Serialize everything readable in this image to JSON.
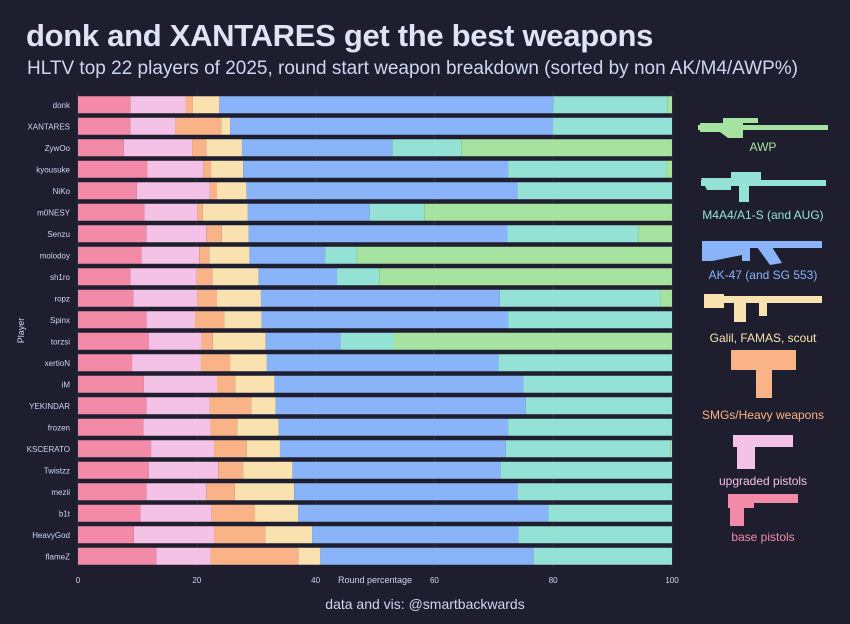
{
  "chart_data": {
    "type": "bar",
    "orientation": "horizontal",
    "stacked": true,
    "title": "donk and XANTARES get the best weapons",
    "subtitle": "HLTV top 22 players of 2025, round start weapon breakdown (sorted by non AK/M4/AWP%)",
    "xlabel": "Round percentage",
    "ylabel": "Player",
    "xlim": [
      0,
      100
    ],
    "xticks": [
      0,
      20,
      40,
      60,
      80,
      100
    ],
    "grid": true,
    "legend_position": "right",
    "categories": [
      "donk",
      "XANTARES",
      "ZywOo",
      "kyousuke",
      "NiKo",
      "m0NESY",
      "Senzu",
      "molodoy",
      "sh1ro",
      "ropz",
      "Spinx",
      "torzsi",
      "xertioN",
      "iM",
      "YEKINDAR",
      "frozen",
      "KSCERATO",
      "Twistzz",
      "mezii",
      "b1t",
      "HeavyGod",
      "flameZ"
    ],
    "series": [
      {
        "name": "base pistols",
        "color": "#f38ba8",
        "values": [
          8.8,
          8.8,
          7.7,
          11.7,
          9.9,
          11.2,
          11.5,
          10.7,
          8.8,
          9.3,
          11.5,
          11.9,
          9.1,
          11.1,
          11.5,
          11.0,
          12.3,
          11.9,
          11.5,
          10.5,
          9.4,
          13.2
        ]
      },
      {
        "name": "upgraded pistols",
        "color": "#f5c2e7",
        "values": [
          9.3,
          7.6,
          11.5,
          9.4,
          12.3,
          8.9,
          10.1,
          9.7,
          11.2,
          10.8,
          8.2,
          8.9,
          11.6,
          12.3,
          10.7,
          11.3,
          10.6,
          11.7,
          10.1,
          12.0,
          13.5,
          9.1
        ]
      },
      {
        "name": "SMGs/Heavy weapons",
        "color": "#fab387",
        "values": [
          1.2,
          7.7,
          2.4,
          1.3,
          1.2,
          0.9,
          2.6,
          1.7,
          2.6,
          3.3,
          4.9,
          1.9,
          4.9,
          3.1,
          7.0,
          4.5,
          5.5,
          4.2,
          4.8,
          7.3,
          8.6,
          14.8
        ]
      },
      {
        "name": "Galil, FAMAS, scout",
        "color": "#f9e2af",
        "values": [
          4.5,
          1.5,
          6.0,
          5.4,
          5.0,
          7.6,
          4.5,
          6.8,
          7.8,
          7.4,
          6.3,
          8.9,
          6.2,
          6.6,
          4.1,
          7.0,
          5.6,
          8.3,
          10.0,
          7.3,
          7.9,
          3.7
        ]
      },
      {
        "name": "AK-47 (and SG 553)",
        "color": "#89b4fa",
        "values": [
          56.2,
          54.3,
          25.3,
          44.6,
          45.6,
          20.5,
          43.6,
          12.7,
          13.2,
          40.2,
          41.5,
          12.6,
          39.0,
          41.9,
          42.1,
          38.6,
          38.0,
          35.0,
          37.6,
          42.1,
          34.7,
          35.9
        ]
      },
      {
        "name": "M4A4/A1-S (and AUG)",
        "color": "#94e2d5",
        "values": [
          19.2,
          20.1,
          11.6,
          26.6,
          26.0,
          9.2,
          22.0,
          5.3,
          7.1,
          27.0,
          27.6,
          9.0,
          29.2,
          25.0,
          24.6,
          27.6,
          27.8,
          28.9,
          26.0,
          20.8,
          25.9,
          23.3
        ]
      },
      {
        "name": "AWP",
        "color": "#a6e3a1",
        "values": [
          0.8,
          0.0,
          35.5,
          1.0,
          0.0,
          41.7,
          5.7,
          53.1,
          49.3,
          2.0,
          0.0,
          46.8,
          0.0,
          0.0,
          0.0,
          0.0,
          0.2,
          0.0,
          0.0,
          0.0,
          0.0,
          0.0
        ]
      }
    ]
  },
  "credit": "data and vis: @smartbackwards",
  "colors": {
    "background": "#1e1e2e",
    "text": "#cdd6f4"
  }
}
